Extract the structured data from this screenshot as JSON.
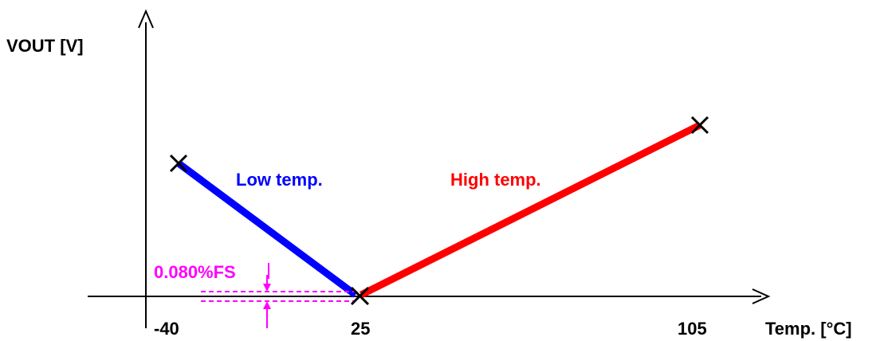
{
  "axes": {
    "y_label": "VOUT [V]",
    "x_label": "Temp. [°C]",
    "ticks": [
      "-40",
      "25",
      "105"
    ]
  },
  "segments": {
    "low": {
      "label": "Low temp.",
      "color": "#0000ff"
    },
    "high": {
      "label": "High temp.",
      "color": "#ff0000"
    }
  },
  "annotation": {
    "label": "0.080%FS",
    "color": "#ff00ff"
  },
  "marker_icon": "x-mark-icon"
}
